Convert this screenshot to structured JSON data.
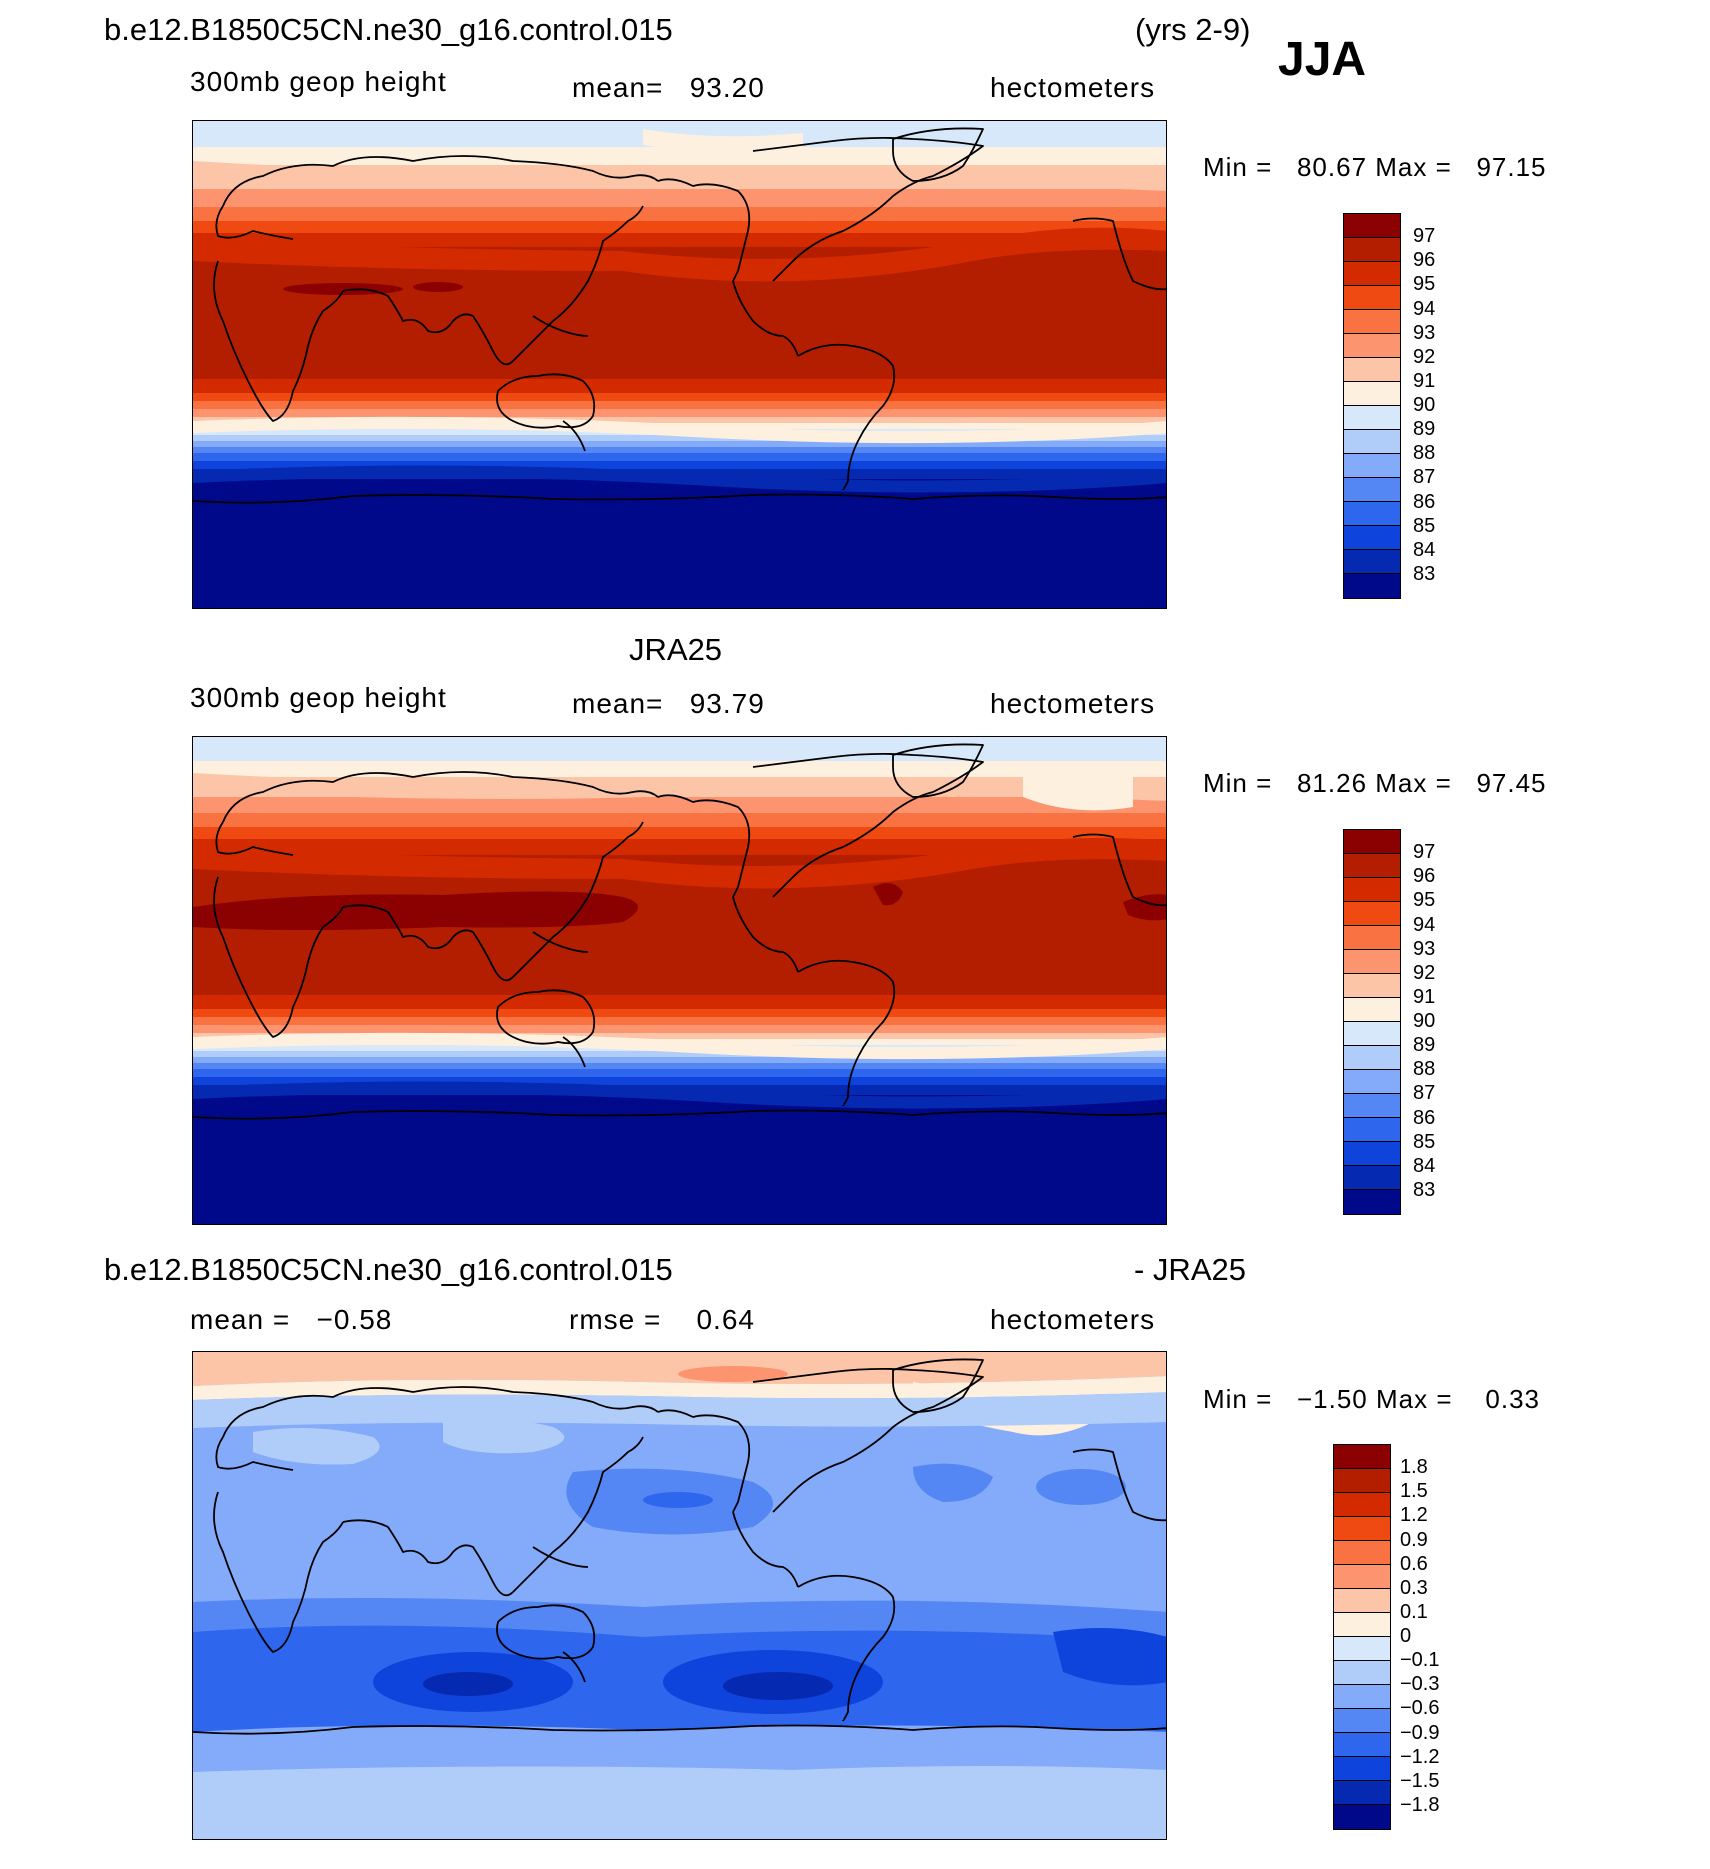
{
  "header": {
    "case_name": "b.e12.B1850C5CN.ne30_g16.control.015",
    "years": "(yrs 2-9)",
    "season": "JJA"
  },
  "panels": [
    {
      "id": "model",
      "variable": "300mb geop height",
      "stat": "mean=   93.20",
      "units": "hectometers",
      "minmax": "Min =   80.67 Max =   97.15",
      "colorbar_labels": [
        "97",
        "96",
        "95",
        "94",
        "93",
        "92",
        "91",
        "90",
        "89",
        "88",
        "87",
        "86",
        "85",
        "84",
        "83"
      ],
      "colorbar_colors": [
        "#8B0000",
        "#B31D00",
        "#D42A00",
        "#EE4A12",
        "#F97241",
        "#FC9470",
        "#FDC5A8",
        "#FEF0DF",
        "#D6E8FA",
        "#B0CDFA",
        "#84ABF9",
        "#5487F4",
        "#2F66EE",
        "#0E44DC",
        "#0629B2",
        "#00098A"
      ]
    },
    {
      "id": "obs",
      "title": "JRA25",
      "variable": "300mb geop height",
      "stat": "mean=   93.79",
      "units": "hectometers",
      "minmax": "Min =   81.26 Max =   97.45",
      "colorbar_labels": [
        "97",
        "96",
        "95",
        "94",
        "93",
        "92",
        "91",
        "90",
        "89",
        "88",
        "87",
        "86",
        "85",
        "84",
        "83"
      ],
      "colorbar_colors": [
        "#8B0000",
        "#B31D00",
        "#D42A00",
        "#EE4A12",
        "#F97241",
        "#FC9470",
        "#FDC5A8",
        "#FEF0DF",
        "#D6E8FA",
        "#B0CDFA",
        "#84ABF9",
        "#5487F4",
        "#2F66EE",
        "#0E44DC",
        "#0629B2",
        "#00098A"
      ]
    },
    {
      "id": "diff",
      "title_left": "b.e12.B1850C5CN.ne30_g16.control.015",
      "title_right": "- JRA25",
      "stat_mean": "mean =   −0.58",
      "stat_rmse": "rmse =    0.64",
      "units": "hectometers",
      "minmax": "Min =   −1.50 Max =    0.33",
      "colorbar_labels": [
        "1.8",
        "1.5",
        "1.2",
        "0.9",
        "0.6",
        "0.3",
        "0.1",
        "0",
        "−0.1",
        "−0.3",
        "−0.6",
        "−0.9",
        "−1.2",
        "−1.5",
        "−1.8"
      ],
      "colorbar_colors": [
        "#8B0000",
        "#B31D00",
        "#D42A00",
        "#EE4A12",
        "#F97241",
        "#FC9470",
        "#FDC5A8",
        "#FEF0DF",
        "#D6E8FA",
        "#B0CDFA",
        "#84ABF9",
        "#5487F4",
        "#2F66EE",
        "#0E44DC",
        "#0629B2",
        "#00098A"
      ]
    }
  ]
}
